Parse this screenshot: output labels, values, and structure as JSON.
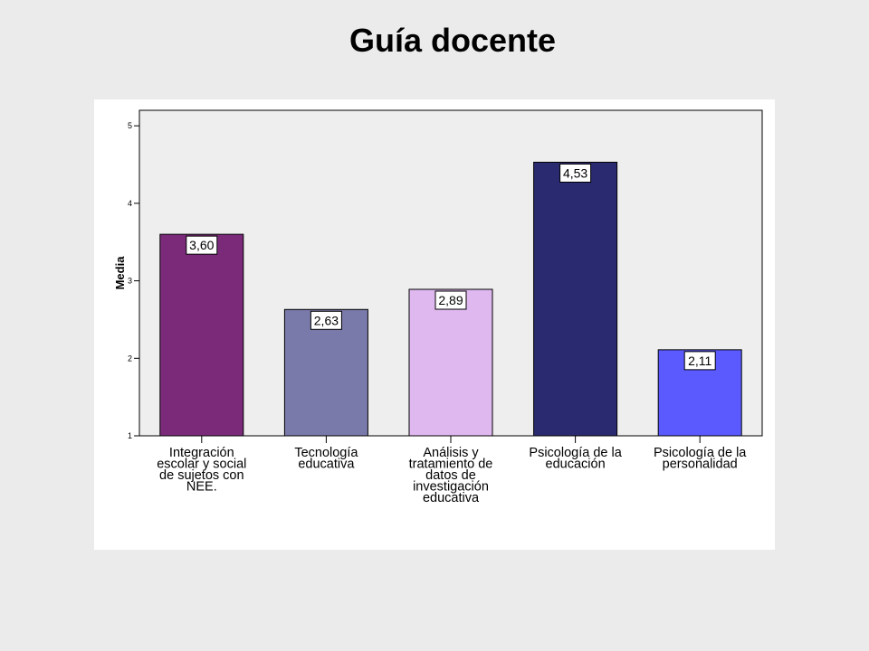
{
  "page": {
    "title": "Guía docente"
  },
  "chart_data": {
    "type": "bar",
    "title": "",
    "xlabel": "",
    "ylabel": "Media",
    "ylim": [
      1,
      5.2
    ],
    "yticks": [
      "1",
      "2",
      "3",
      "4",
      "5"
    ],
    "grid": false,
    "categories": [
      [
        "Integración",
        "escolar y social",
        "de sujetos con",
        "NEE."
      ],
      [
        "Tecnología",
        "educativa"
      ],
      [
        "Análisis y",
        "tratamiento de",
        "datos de",
        "investigación",
        "educativa"
      ],
      [
        "Psicología de la",
        "educación"
      ],
      [
        "Psicología de la",
        "personalidad"
      ]
    ],
    "values": [
      3.6,
      2.63,
      2.89,
      4.53,
      2.11
    ],
    "data_labels": [
      "3,60",
      "2,63",
      "2,89",
      "4,53",
      "2,11"
    ],
    "colors": [
      "#7b2a7a",
      "#7a7aaa",
      "#dfb8f0",
      "#2a2a70",
      "#5a5aff"
    ],
    "plot_background": "#eeeeee"
  }
}
